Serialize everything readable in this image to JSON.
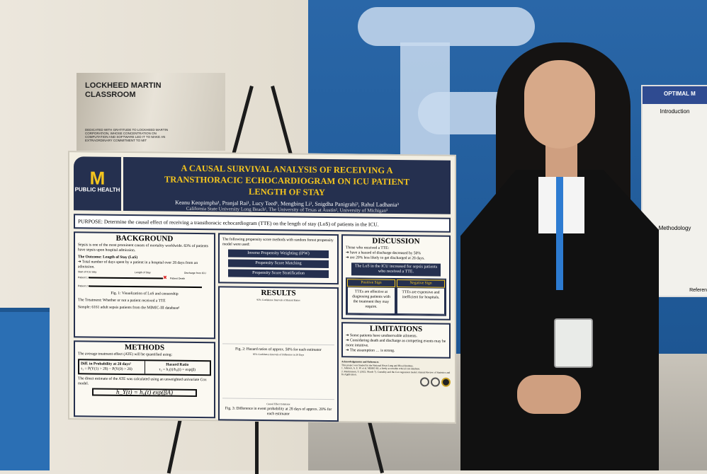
{
  "plaque": {
    "title": "LOCKHEED MARTIN CLASSROOM",
    "dedication": "Dedicated with gratitude to Lockheed Martin Corporation, whose concentration on computation and software led it to make an extraordinary commitment to MIT"
  },
  "poster": {
    "logo": {
      "letter": "M",
      "text": "PUBLIC HEALTH"
    },
    "title": "A CAUSAL SURVIVAL ANALYSIS OF RECEIVING A TRANSTHORACIC ECHOCARDIOGRAM ON ICU PATIENT LENGTH OF STAY",
    "authors": "Keanu Keopimpha¹, Pranjal Rai¹, Lucy Teed¹, Mengbing Li², Snigdha Panigrahi³, Rahul Ladhania³",
    "affiliations": "California State University Long Beach¹, The University of Texas at Austin², University of Michigan³",
    "purpose": "PURPOSE: Determine the causal effect of receiving a transthoracic echocardiogram (TTE) on the length of stay (LoS) of patients in the ICU.",
    "background": {
      "heading": "BACKGROUND",
      "intro": "Sepsis is one of the most prominent causes of mortality worldwide. 83% of patients have sepsis upon hospital admission.",
      "outcome": "The Outcome: Length of Stay (LoS)",
      "outcome_detail": "Total number of days spent by a patient in a hospital over 28 days from an admission.",
      "fig_labels": [
        "Start of ICU Stay",
        "Length of Stay",
        "Discharge from ICU",
        "Patient 1",
        "Patient 2",
        "Patient Death"
      ],
      "fig1": "Fig. 1: Visualization of LoS and censorship",
      "treatment": "The Treatment: Whether or not a patient received a TTE",
      "sample": "Sample: 6161 adult sepsis patients from the MIMIC-III database¹"
    },
    "methods": {
      "heading": "METHODS",
      "intro": "The average treatment effect (ATE) will be quantified using:",
      "diff_title": "Diff. in Probability at 28 days²",
      "diff_formula": "τ₁ = P(Y(1) > 28) − P(Y(0) > 28)",
      "hr_title": "Hazard Ratio",
      "hr_formula": "τ₂ = h₁(t)/h₀(t) = exp(β)",
      "cox_text": "The direct estimate of the ATE was calculated using an unweighted univariate Cox model.",
      "cox_formula": "h_Y(t) = h₀(t) exp(βA)"
    },
    "propensity": {
      "intro": "The following propensity score methods with random forest propensity model were used:",
      "methods": [
        "Inverse Propensity Weighting (IPW)",
        "Propensity Score Matching",
        "Propensity Score Stratification"
      ]
    },
    "results": {
      "heading": "RESULTS",
      "fig2_title": "95% Confidence Intervals of Hazard Ratios",
      "fig2": "Fig. 2: Hazard ratios of approx. 50% for each estimator",
      "fig3_title": "95% Confidence Intervals of Difference in 28 Days",
      "fig3": "Fig. 3: Difference in event probability at 28 days of approx. 20% for each estimator",
      "xlabel": "Causal Effect Estimator"
    },
    "discussion": {
      "heading": "DISCUSSION",
      "intro": "Those who received a TTE:",
      "points": [
        "have a hazard of discharge decreased by 50%",
        "are 20% less likely to get discharged at 28 days."
      ],
      "banner": "The LoS in the ICU increased for sepsis patients who received a TTE.",
      "positive_label": "Positive Sign",
      "negative_label": "Negative Sign",
      "positive": "TTEs are effective at diagnosing patients with the treatment they may require.",
      "negative": "TTEs are expensive and inefficient for hospitals."
    },
    "limitations": {
      "heading": "LIMITATIONS",
      "points": [
        "Some patients have unobservable ailments.",
        "Considering death and discharge as competing events may be more intuitive.",
        "The assumption … is strong."
      ]
    },
    "ack": {
      "heading": "Acknowledgements and References",
      "text": "This project was funded by the National Heart Lung and Blood Institute.",
      "refs": [
        "1. Johnson, A. E. W. et al. MIMIC-III, a freely accessible critical care database.",
        "2. Martinussen, T. (2022, March 7). Causality and the Cox regression model. Annual Review of Statistics and Its Application."
      ]
    }
  },
  "right_poster": {
    "title": "OPTIMAL M",
    "intro_heading": "Introduction",
    "methodology_heading": "Methodology",
    "references_heading": "Referen"
  },
  "colors": {
    "poster_navy": "#25304f",
    "michigan_maize": "#f4c51e",
    "wall_blue": "#1f5fa0"
  }
}
